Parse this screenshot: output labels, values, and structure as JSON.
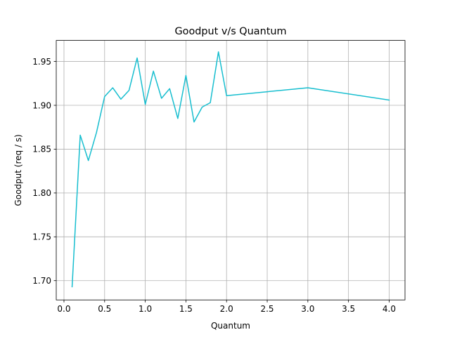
{
  "chart_data": {
    "type": "line",
    "title": "Goodput v/s Quantum",
    "xlabel": "Quantum",
    "ylabel": "Goodput (req / s)",
    "xlim": [
      -0.095,
      4.195
    ],
    "ylim": [
      1.678,
      1.974
    ],
    "xticks": [
      0.0,
      0.5,
      1.0,
      1.5,
      2.0,
      2.5,
      3.0,
      3.5,
      4.0
    ],
    "xtick_labels": [
      "0.0",
      "0.5",
      "1.0",
      "1.5",
      "2.0",
      "2.5",
      "3.0",
      "3.5",
      "4.0"
    ],
    "yticks": [
      1.7,
      1.75,
      1.8,
      1.85,
      1.9,
      1.95
    ],
    "ytick_labels": [
      "1.70",
      "1.75",
      "1.80",
      "1.85",
      "1.90",
      "1.95"
    ],
    "grid": true,
    "series": [
      {
        "color": "#17becf",
        "x": [
          0.1,
          0.2,
          0.3,
          0.4,
          0.5,
          0.6,
          0.7,
          0.8,
          0.9,
          1.0,
          1.1,
          1.2,
          1.3,
          1.4,
          1.5,
          1.6,
          1.7,
          1.8,
          1.9,
          2.0,
          3.0,
          4.0
        ],
        "y": [
          1.693,
          1.866,
          1.837,
          1.869,
          1.91,
          1.92,
          1.907,
          1.917,
          1.954,
          1.901,
          1.939,
          1.908,
          1.919,
          1.885,
          1.934,
          1.881,
          1.898,
          1.903,
          1.961,
          1.911,
          1.92,
          1.906
        ]
      }
    ]
  }
}
